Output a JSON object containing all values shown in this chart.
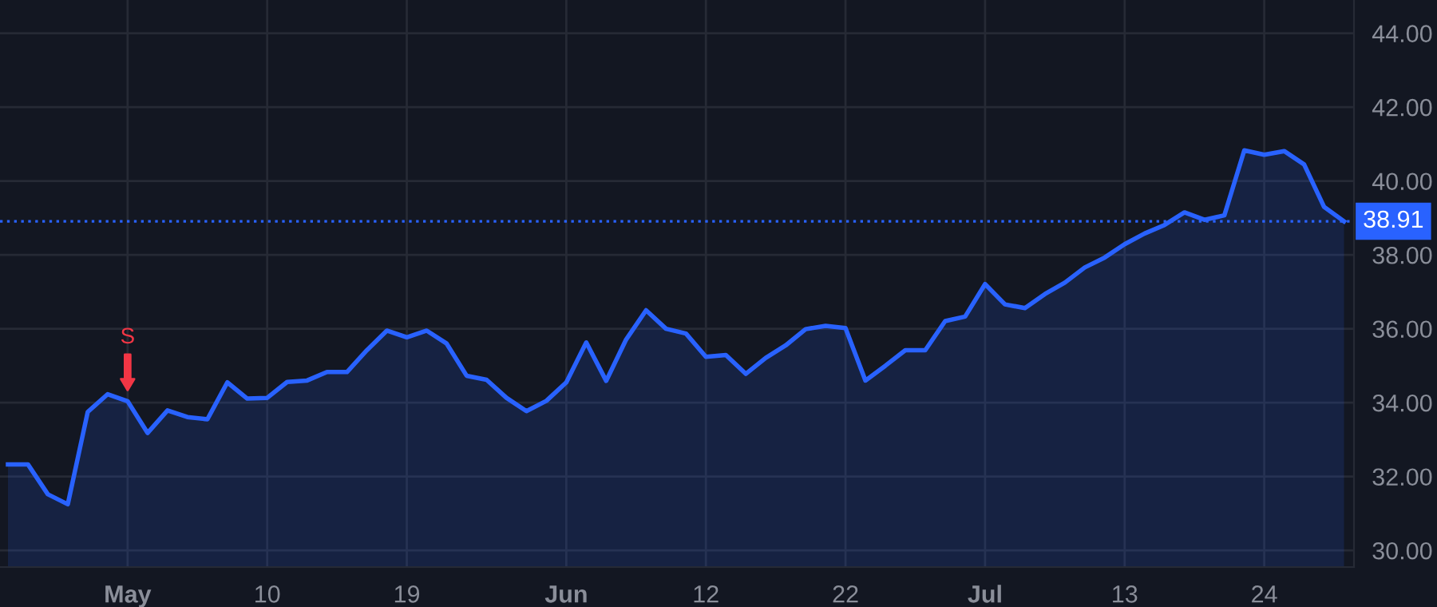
{
  "chart_data": {
    "type": "area",
    "categories": [
      null,
      null,
      null,
      null,
      null,
      null,
      "May",
      null,
      null,
      null,
      null,
      null,
      null,
      "10",
      null,
      null,
      null,
      null,
      null,
      null,
      "19",
      null,
      null,
      null,
      null,
      null,
      null,
      null,
      "Jun",
      null,
      null,
      null,
      null,
      null,
      null,
      "12",
      null,
      null,
      null,
      null,
      null,
      null,
      "22",
      null,
      null,
      null,
      null,
      null,
      null,
      "Jul",
      null,
      null,
      null,
      null,
      null,
      null,
      "13",
      null,
      null,
      null,
      null,
      null,
      null,
      "24",
      null,
      null,
      null,
      null
    ],
    "series": [
      {
        "color": "#2962ff",
        "values": [
          32.33,
          32.33,
          31.52,
          31.25,
          33.75,
          34.23,
          34.04,
          33.18,
          33.79,
          33.61,
          33.55,
          34.55,
          34.11,
          34.13,
          34.56,
          34.6,
          34.83,
          34.83,
          35.42,
          35.95,
          35.77,
          35.95,
          35.6,
          34.73,
          34.62,
          34.13,
          33.77,
          34.05,
          34.55,
          35.63,
          34.59,
          35.71,
          36.5,
          36.0,
          35.87,
          35.24,
          35.29,
          34.78,
          35.21,
          35.55,
          35.99,
          36.08,
          36.02,
          34.6,
          35.0,
          35.42,
          35.42,
          36.21,
          36.33,
          37.21,
          36.66,
          36.56,
          36.94,
          37.25,
          37.66,
          37.93,
          38.29,
          38.58,
          38.81,
          39.15,
          38.95,
          39.07,
          40.83,
          40.71,
          40.81,
          40.45,
          39.3,
          38.91
        ]
      }
    ],
    "ylim": [
      29.55,
      44.9
    ],
    "yticks": [
      {
        "value": 30,
        "label": "30.00"
      },
      {
        "value": 32,
        "label": "32.00"
      },
      {
        "value": 34,
        "label": "34.00"
      },
      {
        "value": 36,
        "label": "36.00"
      },
      {
        "value": 38,
        "label": "38.00"
      },
      {
        "value": 40,
        "label": "40.00"
      },
      {
        "value": 42,
        "label": "42.00"
      },
      {
        "value": 44,
        "label": "44.00"
      }
    ],
    "grid": true,
    "ref_lines": [
      {
        "axis": "y",
        "value": 38.91,
        "label": "38.91",
        "color": "#2962ff",
        "line_style": "dotted"
      }
    ],
    "annotations": [
      {
        "text": "S",
        "x": "May",
        "y": 34.04
      }
    ]
  }
}
